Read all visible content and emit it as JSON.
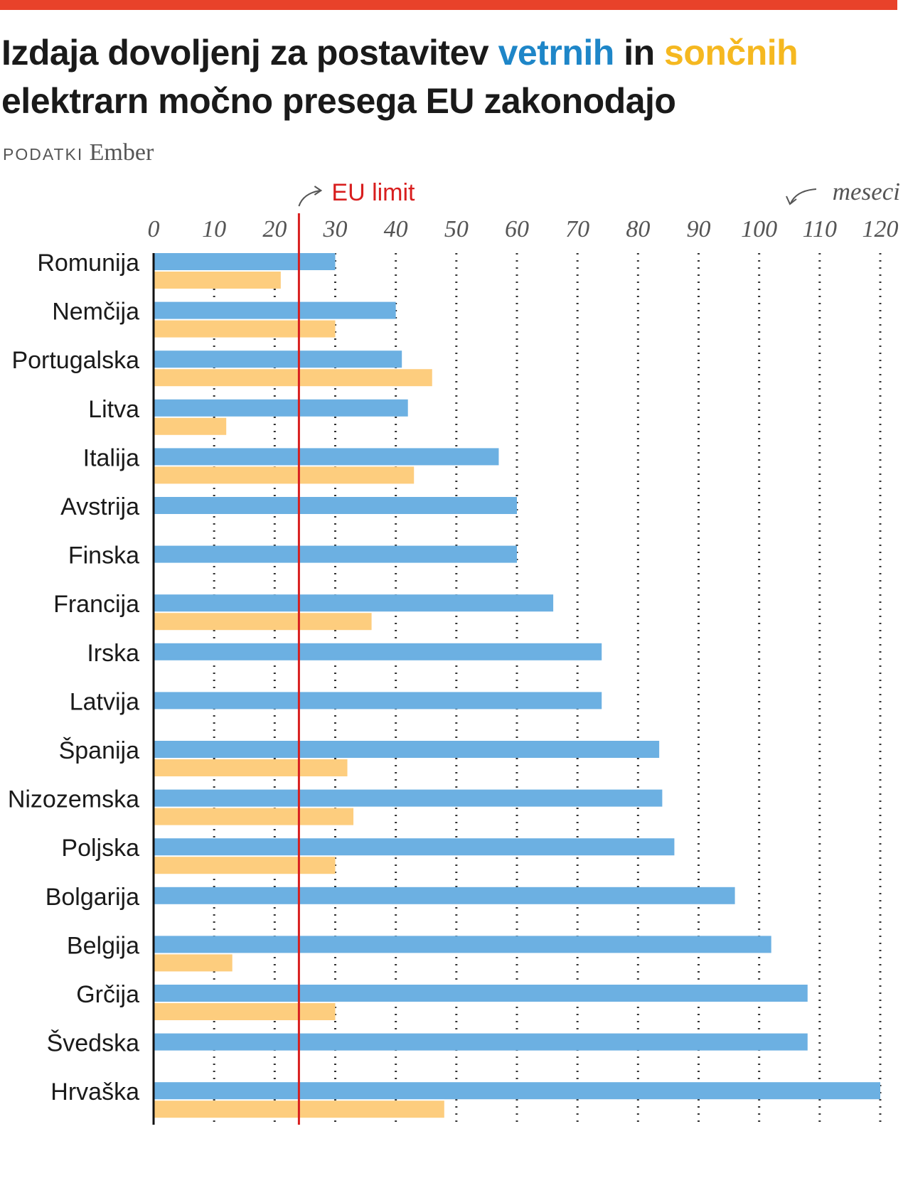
{
  "title": {
    "part1": "Izdaja dovoljenj za postavitev ",
    "wind_word": "vetrnih",
    "part2": " in ",
    "solar_word": "sončnih",
    "part3": " elektrarn močno presega EU zakonodajo"
  },
  "source": {
    "label": "PODATKI",
    "name": "Ember"
  },
  "colors": {
    "wind": "#6cb0e2",
    "solar": "#fdcd7e",
    "limit": "#d81e1e",
    "accent": "#e8422a"
  },
  "chart_data": {
    "type": "bar",
    "orientation": "horizontal",
    "unit_label": "meseci",
    "limit": {
      "label": "EU limit",
      "value": 24
    },
    "xlim": [
      0,
      120
    ],
    "ticks": [
      0,
      10,
      20,
      30,
      40,
      50,
      60,
      70,
      80,
      90,
      100,
      110,
      120
    ],
    "categories": [
      "Romunija",
      "Nemčija",
      "Portugalska",
      "Litva",
      "Italija",
      "Avstrija",
      "Finska",
      "Francija",
      "Irska",
      "Latvija",
      "Španija",
      "Nizozemska",
      "Poljska",
      "Bolgarija",
      "Belgija",
      "Grčija",
      "Švedska",
      "Hrvaška"
    ],
    "series": [
      {
        "name": "vetrne",
        "values": [
          30,
          40,
          41,
          42,
          57,
          60,
          60,
          66,
          74,
          74,
          83.5,
          84,
          86,
          96,
          102,
          108,
          108,
          120
        ]
      },
      {
        "name": "sončne",
        "values": [
          21,
          30,
          46,
          12,
          43,
          null,
          null,
          36,
          null,
          null,
          32,
          33,
          30,
          null,
          13,
          30,
          null,
          48
        ]
      }
    ]
  }
}
